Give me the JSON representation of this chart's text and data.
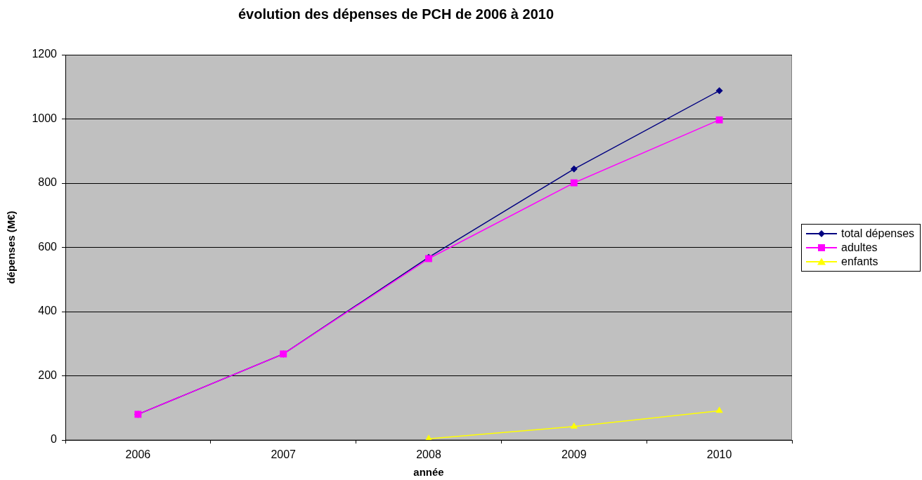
{
  "chart_data": {
    "type": "line",
    "title": "évolution des dépenses de PCH de 2006 à 2010",
    "xlabel": "année",
    "ylabel": "dépenses (M€)",
    "categories": [
      "2006",
      "2007",
      "2008",
      "2009",
      "2010"
    ],
    "series": [
      {
        "name": "total dépenses",
        "color": "#000080",
        "marker": "diamond",
        "values": [
          80,
          268,
          569,
          844,
          1088
        ]
      },
      {
        "name": "adultes",
        "color": "#ff00ff",
        "marker": "square",
        "values": [
          80,
          268,
          565,
          801,
          997
        ]
      },
      {
        "name": "enfants",
        "color": "#ffff00",
        "marker": "triangle",
        "values": [
          null,
          null,
          4,
          42,
          91
        ]
      }
    ],
    "ylim": [
      0,
      1200
    ],
    "yticks": [
      0,
      200,
      400,
      600,
      800,
      1000,
      1200
    ],
    "grid": "y",
    "legend": "right"
  }
}
